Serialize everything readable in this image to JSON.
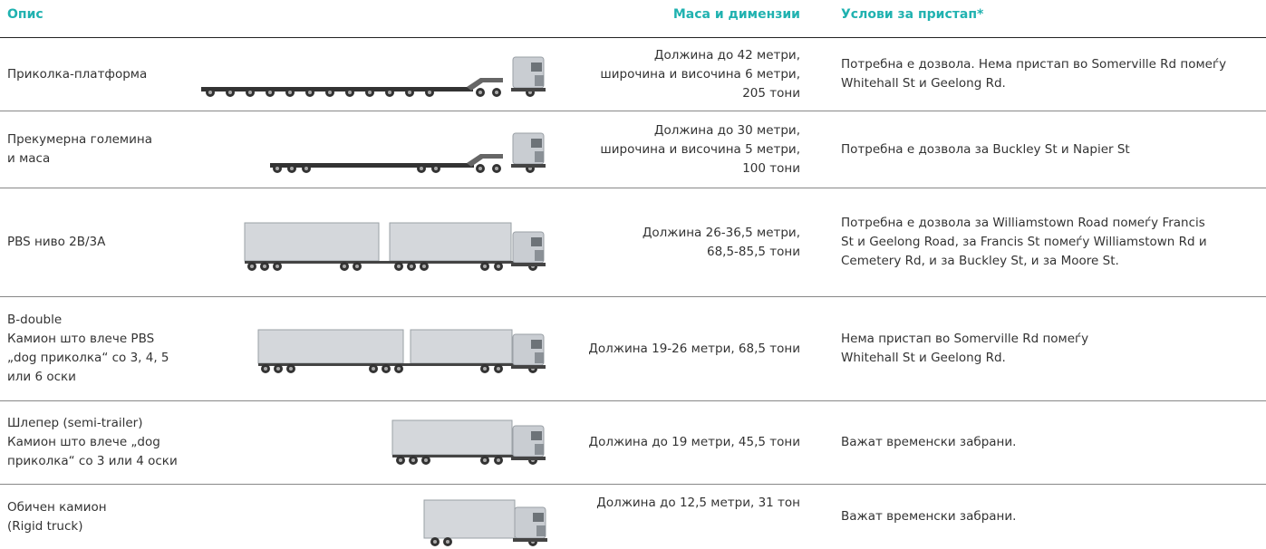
{
  "header": {
    "description": "Опис",
    "dimensions": "Маса и димензии",
    "access": "Услови за пристап*"
  },
  "rows": [
    {
      "description": [
        "Приколка-платформа"
      ],
      "dimensions": [
        "Должина до 42 метри,",
        "широчина и височина 6 метри,",
        "205 тони"
      ],
      "access": [
        "Потребна е дозвола. Нема пристап во Somerville Rd помеѓу",
        "Whitehall St и Geelong Rd."
      ]
    },
    {
      "description": [
        "Прекумерна големина",
        "и маса"
      ],
      "dimensions": [
        "Должина до 30 метри,",
        "широчина и височина 5 метри,",
        "100 тони"
      ],
      "access": [
        "Потребна е дозвола за Buckley St и Napier St"
      ]
    },
    {
      "description": [
        "PBS ниво 2B/3A"
      ],
      "dimensions": [
        "Должина 26-36,5 метри,",
        "68,5-85,5 тони"
      ],
      "access": [
        "Потребна е дозвола за Williamstown Road помеѓу Francis",
        "St и Geelong Road, за Francis St помеѓу Williamstown Rd и",
        "Cemetery Rd, и за Buckley St, и за Moore St."
      ]
    },
    {
      "description": [
        "B-double",
        "Камион што влече PBS",
        "„dog приколка“ со 3, 4, 5",
        "или 6 оски"
      ],
      "dimensions": [
        "Должина 19-26 метри, 68,5 тони"
      ],
      "access": [
        "Нема пристап во Somerville Rd помеѓу",
        "Whitehall St и Geelong Rd."
      ]
    },
    {
      "description": [
        "Шлепер (semi-trailer)",
        "Камион што влече „dog",
        "приколка“ со 3 или 4 оски"
      ],
      "dimensions": [
        "Должина до 19 метри, 45,5 тони"
      ],
      "access": [
        "Важат временски забрани."
      ]
    },
    {
      "description": [
        "Обичен камион",
        "(Rigid truck)"
      ],
      "dimensions": [
        "Должина до 12,5 метри, 31 тон"
      ],
      "access": [
        "Важат временски забрани."
      ]
    }
  ]
}
